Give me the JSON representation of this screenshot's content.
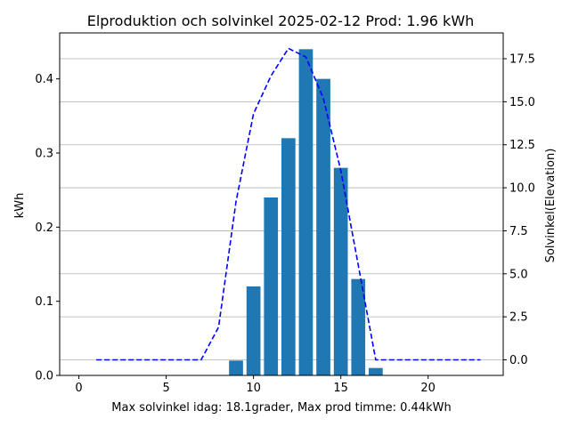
{
  "chart_data": {
    "type": "bar",
    "title": "Elproduktion och solvinkel 2025-02-12 Prod: 1.96 kWh",
    "xlabel": "Max solvinkel idag: 18.1grader, Max prod timme: 0.44kWh",
    "ylabel": "kWh",
    "y2label": "Solvinkel(Elevation)",
    "xlim": [
      -1.1,
      24.3
    ],
    "ylim": [
      0,
      0.462
    ],
    "y2lim": [
      -0.905,
      19.0
    ],
    "xticks": [
      0,
      5,
      10,
      15,
      20
    ],
    "yticks": [
      0.0,
      0.1,
      0.2,
      0.3,
      0.4
    ],
    "y2ticks": [
      0.0,
      2.5,
      5.0,
      7.5,
      10.0,
      12.5,
      15.0,
      17.5
    ],
    "grid": "horizontal, secondary axis",
    "bar_color": "#1f77b4",
    "line_color": "#0000ff",
    "y2_label_color": "#0000ff",
    "series": [
      {
        "type": "bar",
        "axis": "left",
        "x": [
          1,
          2,
          3,
          4,
          5,
          6,
          7,
          8,
          9,
          10,
          11,
          12,
          13,
          14,
          15,
          16,
          17,
          18,
          19,
          20,
          21,
          22,
          23
        ],
        "values": [
          0,
          0,
          0,
          0,
          0,
          0,
          0,
          0,
          0.02,
          0.12,
          0.24,
          0.32,
          0.44,
          0.4,
          0.28,
          0.13,
          0.01,
          0,
          0,
          0,
          0,
          0,
          0
        ]
      },
      {
        "type": "line",
        "axis": "right",
        "style": "dashed",
        "x": [
          1,
          2,
          3,
          4,
          5,
          6,
          7,
          8,
          9,
          10,
          11,
          12,
          13,
          14,
          15,
          16,
          17,
          18,
          19,
          20,
          21,
          22,
          23
        ],
        "values": [
          0,
          0,
          0,
          0,
          0,
          0,
          0,
          1.9,
          9.2,
          14.3,
          16.5,
          18.1,
          17.6,
          15.2,
          11.0,
          5.5,
          0,
          0,
          0,
          0,
          0,
          0,
          0
        ]
      }
    ]
  }
}
